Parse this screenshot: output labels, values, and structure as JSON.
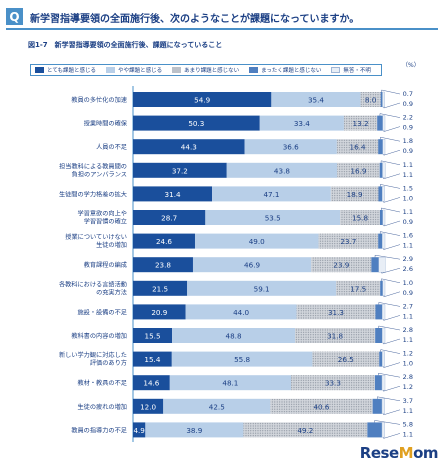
{
  "header": {
    "badge": "Q",
    "question": "新学習指導要領の全面施行後、次のようなことが課題になっていますか。"
  },
  "figure": {
    "title": "図1-7　新学習指導要領の全面施行後、課題になっていること",
    "unit": "（%）"
  },
  "watermark": {
    "text_pre": "Rese",
    "text_o": "M",
    "text_post": "om"
  },
  "colors": {
    "strong": "#1a4f9c",
    "somewhat": "#b8cfe8",
    "notmuch": "#d2d6dc",
    "none": "#4f7fc0",
    "noanswer": "#e8eef6"
  },
  "chart_data": {
    "type": "bar",
    "orientation": "horizontal-stacked-100",
    "xlim": [
      0,
      100
    ],
    "series": [
      {
        "name": "とても課題と感じる",
        "pattern": "solid"
      },
      {
        "name": "やや課題と感じる",
        "pattern": "solid"
      },
      {
        "name": "あまり課題と感じない",
        "pattern": "dotted"
      },
      {
        "name": "まったく課題と感じない",
        "pattern": "solid"
      },
      {
        "name": "無答・不明",
        "pattern": "solid"
      }
    ],
    "rows": [
      {
        "label": [
          "教員の多忙化の加速"
        ],
        "values": [
          54.9,
          35.4,
          8.0,
          0.7,
          0.9
        ]
      },
      {
        "label": [
          "授業時間の確保"
        ],
        "values": [
          50.3,
          33.4,
          13.2,
          2.2,
          0.9
        ]
      },
      {
        "label": [
          "人員の不足"
        ],
        "values": [
          44.3,
          36.6,
          16.4,
          1.8,
          0.9
        ]
      },
      {
        "label": [
          "担当教科による教員間の",
          "負担のアンバランス"
        ],
        "values": [
          37.2,
          43.8,
          16.9,
          1.1,
          1.1
        ]
      },
      {
        "label": [
          "生徒間の学力格差の拡大"
        ],
        "values": [
          31.4,
          47.1,
          18.9,
          1.5,
          1.0
        ]
      },
      {
        "label": [
          "学習意欲の向上や",
          "学習習慣の確立"
        ],
        "values": [
          28.7,
          53.5,
          15.8,
          1.1,
          0.9
        ]
      },
      {
        "label": [
          "授業についていけない",
          "生徒の増加"
        ],
        "values": [
          24.6,
          49.0,
          23.7,
          1.6,
          1.1
        ]
      },
      {
        "label": [
          "教育課程の編成"
        ],
        "values": [
          23.8,
          46.9,
          23.9,
          2.9,
          2.6
        ]
      },
      {
        "label": [
          "各教科における言語活動",
          "の充実方法"
        ],
        "values": [
          21.5,
          59.1,
          17.5,
          1.0,
          0.9
        ]
      },
      {
        "label": [
          "施設・設備の不足"
        ],
        "values": [
          20.9,
          44.0,
          31.3,
          2.7,
          1.1
        ]
      },
      {
        "label": [
          "教科書の内容の増加"
        ],
        "values": [
          15.5,
          48.8,
          31.8,
          2.8,
          1.1
        ]
      },
      {
        "label": [
          "新しい学力観に対応した",
          "評価のあり方"
        ],
        "values": [
          15.4,
          55.8,
          26.5,
          1.2,
          1.0
        ]
      },
      {
        "label": [
          "教材・教具の不足"
        ],
        "values": [
          14.6,
          48.1,
          33.3,
          2.8,
          1.2
        ]
      },
      {
        "label": [
          "生徒の疲れの増加"
        ],
        "values": [
          12.0,
          42.5,
          40.6,
          3.7,
          1.1
        ]
      },
      {
        "label": [
          "教員の指導力の不足"
        ],
        "values": [
          4.9,
          38.9,
          49.2,
          5.8,
          1.1
        ]
      }
    ]
  }
}
